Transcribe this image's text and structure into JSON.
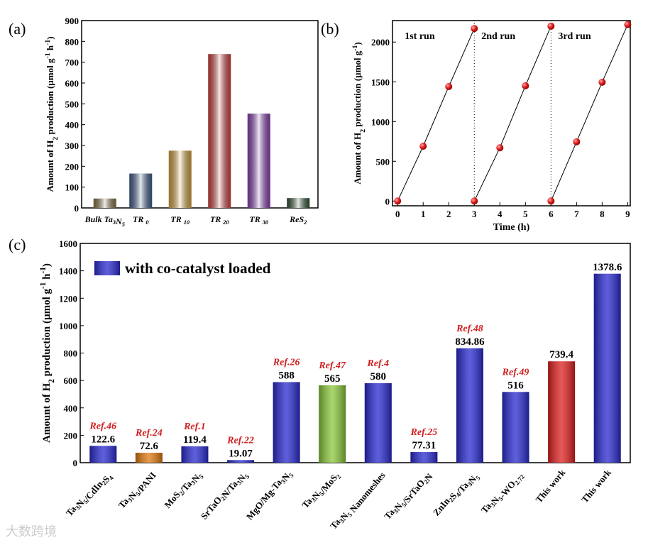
{
  "chart_data": [
    {
      "panel": "(a)",
      "type": "bar",
      "ylabel": "Amount of H2 production (µmol g-1 h-1)",
      "ylim": [
        0,
        900
      ],
      "yticks": [
        0,
        100,
        200,
        300,
        400,
        500,
        600,
        700,
        800,
        900
      ],
      "categories": [
        "Bulk Ta3N5",
        "TR 0",
        "TR 10",
        "TR 20",
        "TR 30",
        "ReS2"
      ],
      "values": [
        45,
        165,
        275,
        739,
        453,
        47
      ],
      "colors": [
        "#9b8355",
        "#4a6a9a",
        "#f0b84a",
        "#e84a4a",
        "#9a4ac8",
        "#3d6040"
      ]
    },
    {
      "panel": "(b)",
      "type": "line",
      "xlabel": "Time (h)",
      "ylabel": "Amount of H2 production (µmol g-1)",
      "xlim": [
        -0.2,
        9.1
      ],
      "ylim": [
        -60,
        2270
      ],
      "xticks": [
        0,
        1,
        2,
        3,
        4,
        5,
        6,
        7,
        8,
        9
      ],
      "yticks": [
        0,
        500,
        1000,
        1500,
        2000
      ],
      "annotations": [
        "1st run",
        "2nd run",
        "3rd run"
      ],
      "series": [
        {
          "name": "1st run",
          "x": [
            0,
            1,
            2,
            3
          ],
          "y": [
            0,
            690,
            1440,
            2170
          ]
        },
        {
          "name": "2nd run",
          "x": [
            3,
            4,
            5,
            6
          ],
          "y": [
            0,
            670,
            1450,
            2200
          ]
        },
        {
          "name": "3rd run",
          "x": [
            6,
            7,
            8,
            9
          ],
          "y": [
            0,
            745,
            1495,
            2220
          ]
        }
      ],
      "dividers": [
        3,
        6
      ]
    },
    {
      "panel": "(c)",
      "type": "bar",
      "ylabel": "Amount of H2 production (µmol g-1 h-1)",
      "ylim": [
        0,
        1600
      ],
      "yticks": [
        0,
        200,
        400,
        600,
        800,
        1000,
        1200,
        1400,
        1600
      ],
      "legend": "with co-catalyst loaded",
      "legend_placement": "top-left",
      "categories": [
        "Ta3N5/CdIn2S4",
        "Ta3N5/PANI",
        "MoS2/Ta3N5",
        "SrTaO2N/Ta3N5",
        "MgO/Mg-Ta3N5",
        "Ta3N5/MoS2",
        "Ta3N5 Nanomeshes",
        "Ta3N5/SrTaO2N",
        "ZnIn2S4/Ta3N5",
        "Ta3N5-WO2.72",
        "This work",
        "This work"
      ],
      "values": [
        122.6,
        72.6,
        119.4,
        19.07,
        588,
        565,
        580,
        77.31,
        834.86,
        516,
        739.4,
        1378.6
      ],
      "labels": [
        "122.6",
        "72.6",
        "119.4",
        "19.07",
        "588",
        "565",
        "580",
        "77.31",
        "834.86",
        "516",
        "739.4",
        "1378.6"
      ],
      "refs": [
        "Ref.46",
        "Ref.24",
        "Ref.1",
        "Ref.22",
        "Ref.26",
        "Ref.47",
        "Ref.4",
        "Ref.25",
        "Ref.48",
        "Ref.49",
        "",
        ""
      ],
      "colors": [
        "#2a2ad0",
        "#e07a10",
        "#2a2ad0",
        "#2a2ad0",
        "#2a2ad0",
        "#8cc83c",
        "#2a2ad0",
        "#2a2ad0",
        "#2a2ad0",
        "#2a2ad0",
        "#e02020",
        "#2a2ad0"
      ]
    }
  ],
  "watermark": "大数跨境"
}
